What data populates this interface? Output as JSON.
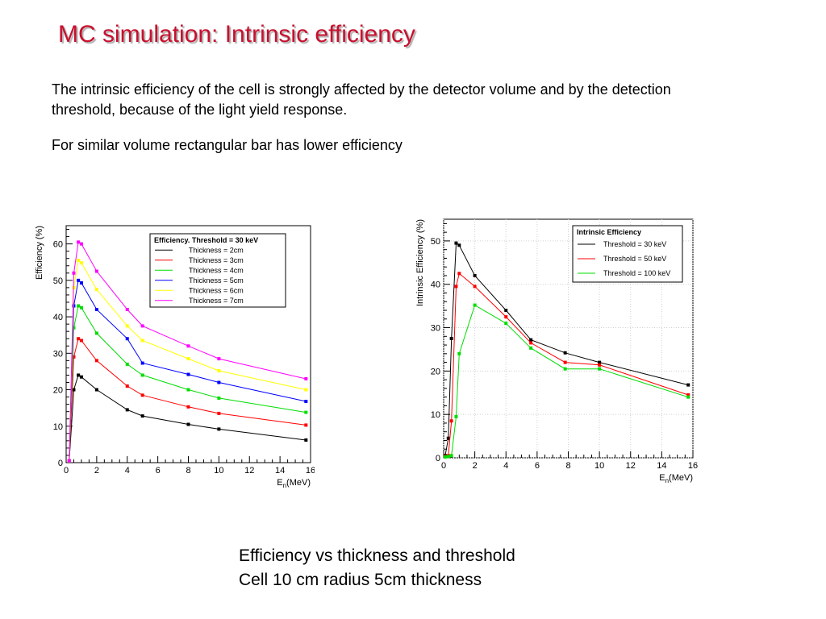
{
  "slide": {
    "title": "MC simulation: Intrinsic efficiency",
    "paragraph1": "The intrinsic efficiency of the cell is strongly affected by the detector volume and by the detection threshold, because of the light yield response.",
    "paragraph2": "For similar volume rectangular bar has lower efficiency",
    "caption_line1": "Efficiency vs thickness and threshold",
    "caption_line2": "Cell 10 cm radius 5cm thickness"
  },
  "colors": {
    "title": "#c8102e"
  },
  "chart_data": [
    {
      "type": "line",
      "title": "",
      "ylabel": "Efficiency (%)",
      "xlabel": "E_n(MeV)",
      "xlim": [
        0,
        16
      ],
      "ylim": [
        0,
        65
      ],
      "xticks": [
        0,
        2,
        4,
        6,
        8,
        10,
        12,
        14,
        16
      ],
      "yticks": [
        0,
        10,
        20,
        30,
        40,
        50,
        60
      ],
      "grid": false,
      "legend_title": "Efficiency. Threshold = 30 keV",
      "legend_position": "top-right",
      "x": [
        0.2,
        0.5,
        0.8,
        1.0,
        2.0,
        4.0,
        5.0,
        8.0,
        10.0,
        15.7
      ],
      "series": [
        {
          "name": "Thickness = 2cm",
          "color": "#000000",
          "values": [
            0.5,
            20,
            24,
            23.5,
            20,
            14.5,
            12.8,
            10.5,
            9.2,
            6.2
          ]
        },
        {
          "name": "Thickness = 3cm",
          "color": "#ff0000",
          "values": [
            0.5,
            29,
            34,
            33.5,
            28,
            21,
            18.5,
            15.3,
            13.5,
            10.3
          ]
        },
        {
          "name": "Thickness = 4cm",
          "color": "#00dd00",
          "values": [
            0.5,
            37,
            43,
            42.5,
            35.5,
            27,
            24,
            20,
            17.7,
            13.8
          ]
        },
        {
          "name": "Thickness = 5cm",
          "color": "#0000ff",
          "values": [
            0.5,
            43,
            50,
            49.3,
            42,
            34,
            27.3,
            24.2,
            22,
            16.8
          ]
        },
        {
          "name": "Thickness = 6cm",
          "color": "#ffff00",
          "values": [
            0.5,
            48,
            55.5,
            54.8,
            47.5,
            37.5,
            33.5,
            28.5,
            25.2,
            20
          ]
        },
        {
          "name": "Thickness = 7cm",
          "color": "#ff00ff",
          "values": [
            0.5,
            52,
            60.5,
            60,
            52.5,
            42,
            37.5,
            32,
            28.5,
            23
          ]
        }
      ]
    },
    {
      "type": "line",
      "title": "",
      "ylabel": "Intrinsic Efficiency (%)",
      "xlabel": "E_n(MeV)",
      "xlim": [
        0,
        16
      ],
      "ylim": [
        0,
        55
      ],
      "xticks": [
        0,
        2,
        4,
        6,
        8,
        10,
        12,
        14,
        16
      ],
      "yticks": [
        0,
        10,
        20,
        30,
        40,
        50
      ],
      "grid": true,
      "legend_title": "Intrinsic Efficiency",
      "legend_position": "top-right",
      "x": [
        0.1,
        0.3,
        0.5,
        0.8,
        1.0,
        2.0,
        4.0,
        5.6,
        7.8,
        10.0,
        15.7
      ],
      "series": [
        {
          "name": "Threshold = 30 keV",
          "color": "#000000",
          "values": [
            0.5,
            4.5,
            27.5,
            49.5,
            49,
            42,
            34,
            27.2,
            24.2,
            22,
            16.8
          ]
        },
        {
          "name": "Threshold = 50 keV",
          "color": "#ff0000",
          "values": [
            0.3,
            0.5,
            8.5,
            39.5,
            42.5,
            39.5,
            32.5,
            26.5,
            22,
            21.4,
            14.5
          ]
        },
        {
          "name": "Threshold = 100 keV",
          "color": "#00dd00",
          "values": [
            0.2,
            0.3,
            0.5,
            9.5,
            24,
            35.2,
            31,
            25.3,
            20.5,
            20.5,
            14
          ]
        }
      ]
    }
  ]
}
